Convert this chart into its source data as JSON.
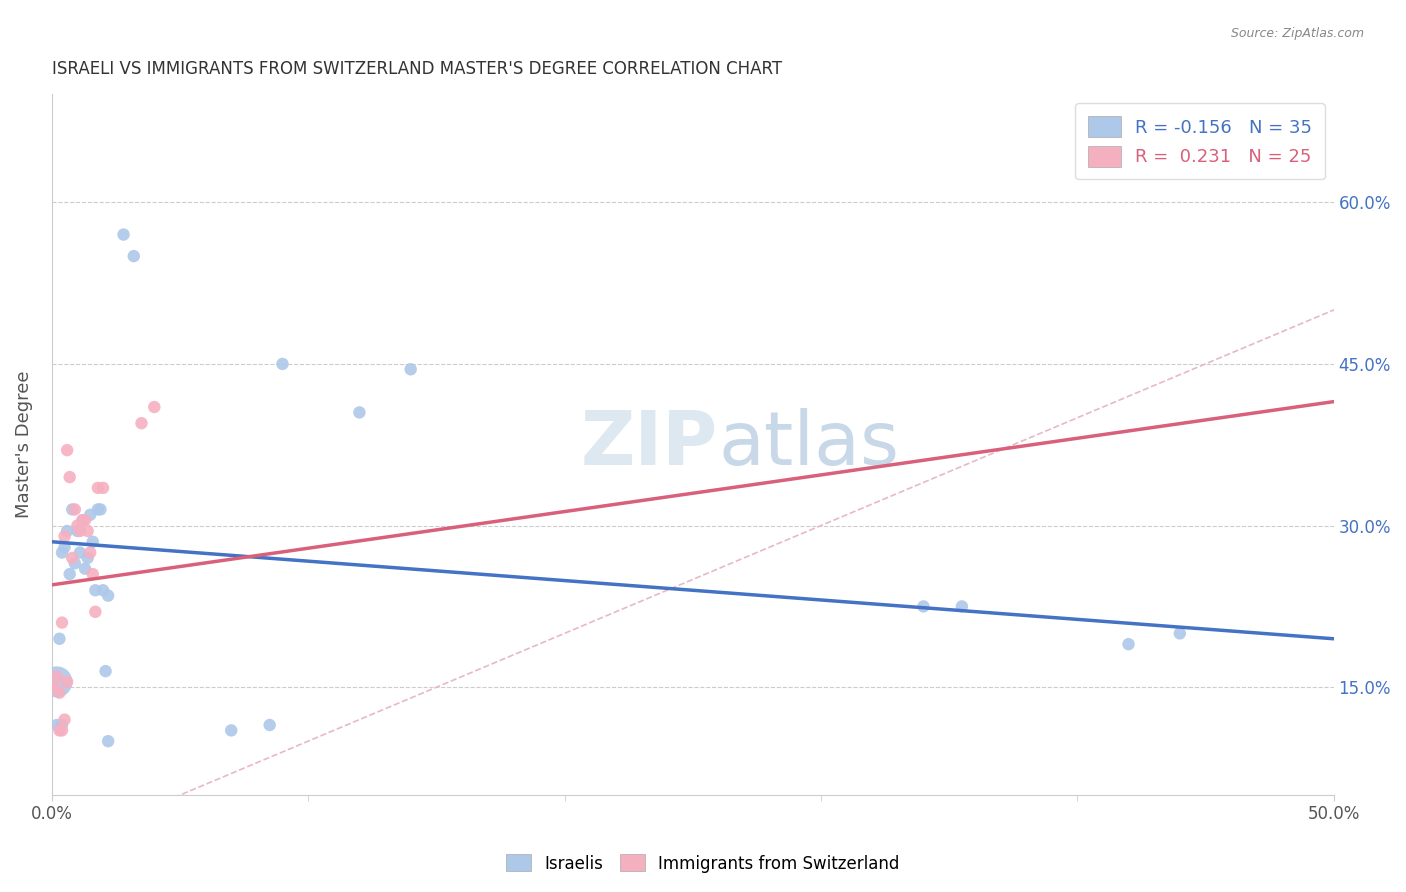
{
  "title": "ISRAELI VS IMMIGRANTS FROM SWITZERLAND MASTER'S DEGREE CORRELATION CHART",
  "source": "Source: ZipAtlas.com",
  "ylabel": "Master's Degree",
  "xlim": [
    0.0,
    0.5
  ],
  "ylim": [
    0.05,
    0.7
  ],
  "yticks": [
    0.15,
    0.3,
    0.45,
    0.6
  ],
  "ytick_labels": [
    "15.0%",
    "30.0%",
    "45.0%",
    "60.0%"
  ],
  "legend_blue_r": "-0.156",
  "legend_blue_n": "35",
  "legend_pink_r": "0.231",
  "legend_pink_n": "25",
  "blue_color": "#adc8e8",
  "pink_color": "#f5b0c0",
  "blue_line_color": "#4472c4",
  "pink_line_color": "#d9607a",
  "watermark_color": "#dde8f0",
  "blue_trend_x0": 0.0,
  "blue_trend_y0": 0.285,
  "blue_trend_x1": 0.5,
  "blue_trend_y1": 0.195,
  "pink_trend_x0": 0.0,
  "pink_trend_y0": 0.245,
  "pink_trend_x1": 0.5,
  "pink_trend_y1": 0.415,
  "israelis_x": [
    0.002,
    0.028,
    0.032,
    0.004,
    0.006,
    0.008,
    0.01,
    0.007,
    0.003,
    0.005,
    0.009,
    0.012,
    0.015,
    0.018,
    0.019,
    0.013,
    0.011,
    0.016,
    0.004,
    0.014,
    0.02,
    0.022,
    0.017,
    0.021,
    0.09,
    0.12,
    0.14,
    0.34,
    0.355,
    0.42,
    0.44,
    0.022,
    0.07,
    0.085,
    0.002
  ],
  "israelis_y": [
    0.155,
    0.57,
    0.55,
    0.275,
    0.295,
    0.315,
    0.295,
    0.255,
    0.195,
    0.28,
    0.265,
    0.305,
    0.31,
    0.315,
    0.315,
    0.26,
    0.275,
    0.285,
    0.115,
    0.27,
    0.24,
    0.235,
    0.24,
    0.165,
    0.45,
    0.405,
    0.445,
    0.225,
    0.225,
    0.19,
    0.2,
    0.1,
    0.11,
    0.115,
    0.115
  ],
  "israelis_size": [
    500,
    80,
    80,
    80,
    80,
    80,
    80,
    80,
    80,
    80,
    80,
    80,
    80,
    80,
    80,
    80,
    80,
    80,
    80,
    80,
    80,
    80,
    80,
    80,
    80,
    80,
    80,
    80,
    80,
    80,
    80,
    80,
    80,
    80,
    80
  ],
  "swiss_x": [
    0.004,
    0.006,
    0.007,
    0.009,
    0.011,
    0.013,
    0.015,
    0.005,
    0.008,
    0.01,
    0.012,
    0.014,
    0.003,
    0.006,
    0.016,
    0.018,
    0.02,
    0.017,
    0.005,
    0.003,
    0.004,
    0.035,
    0.04,
    0.002,
    0.001
  ],
  "swiss_y": [
    0.21,
    0.37,
    0.345,
    0.315,
    0.295,
    0.305,
    0.275,
    0.29,
    0.27,
    0.3,
    0.305,
    0.295,
    0.145,
    0.155,
    0.255,
    0.335,
    0.335,
    0.22,
    0.12,
    0.11,
    0.11,
    0.395,
    0.41,
    0.16,
    0.15
  ],
  "swiss_size": [
    80,
    80,
    80,
    80,
    80,
    80,
    80,
    80,
    80,
    80,
    80,
    80,
    80,
    80,
    80,
    80,
    80,
    80,
    80,
    80,
    80,
    80,
    80,
    80,
    80
  ]
}
